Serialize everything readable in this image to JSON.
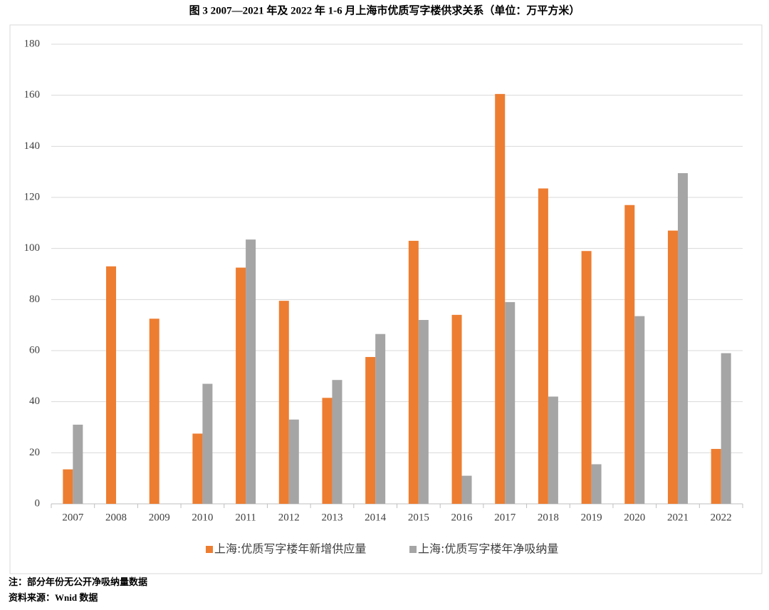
{
  "chart_data": {
    "type": "bar",
    "title": "图 3   2007—2021 年及 2022 年 1-6 月上海市优质写字楼供求关系（单位：万平方米）",
    "categories": [
      "2007",
      "2008",
      "2009",
      "2010",
      "2011",
      "2012",
      "2013",
      "2014",
      "2015",
      "2016",
      "2017",
      "2018",
      "2019",
      "2020",
      "2021",
      "2022"
    ],
    "series": [
      {
        "name": "上海:优质写字楼年新增供应量",
        "color": "#ED7D31",
        "values": [
          13.5,
          93,
          72.5,
          27.5,
          92.5,
          79.5,
          41.5,
          57.5,
          103,
          74,
          160.5,
          123.5,
          99,
          117,
          107,
          21.5
        ]
      },
      {
        "name": "上海:优质写字楼年净吸纳量",
        "color": "#A5A5A5",
        "values": [
          31,
          null,
          null,
          47,
          103.5,
          33,
          48.5,
          66.5,
          72,
          11,
          79,
          42,
          15.5,
          73.5,
          129.5,
          59
        ]
      }
    ],
    "ylim": [
      0,
      180
    ],
    "yticks": [
      0,
      20,
      40,
      60,
      80,
      100,
      120,
      140,
      160,
      180
    ],
    "grid": true,
    "legend": "bottom",
    "footnotes": [
      "注：部分年份无公开净吸纳量数据",
      "资料来源：Wnid 数据"
    ]
  }
}
